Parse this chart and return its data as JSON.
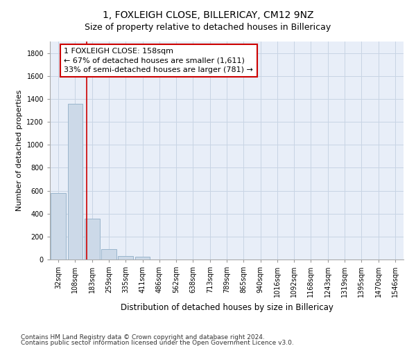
{
  "title": "1, FOXLEIGH CLOSE, BILLERICAY, CM12 9NZ",
  "subtitle": "Size of property relative to detached houses in Billericay",
  "xlabel": "Distribution of detached houses by size in Billericay",
  "ylabel": "Number of detached properties",
  "categories": [
    "32sqm",
    "108sqm",
    "183sqm",
    "259sqm",
    "335sqm",
    "411sqm",
    "486sqm",
    "562sqm",
    "638sqm",
    "713sqm",
    "789sqm",
    "865sqm",
    "940sqm",
    "1016sqm",
    "1092sqm",
    "1168sqm",
    "1243sqm",
    "1319sqm",
    "1395sqm",
    "1470sqm",
    "1546sqm"
  ],
  "values": [
    580,
    1355,
    355,
    90,
    28,
    22,
    0,
    0,
    0,
    0,
    0,
    0,
    0,
    0,
    0,
    0,
    0,
    0,
    0,
    0,
    0
  ],
  "bar_color": "#ccd9e8",
  "bar_edge_color": "#9ab5cc",
  "property_line_x": 1.67,
  "property_line_color": "#cc0000",
  "annotation_text": "1 FOXLEIGH CLOSE: 158sqm\n← 67% of detached houses are smaller (1,611)\n33% of semi-detached houses are larger (781) →",
  "annotation_box_color": "#ffffff",
  "annotation_box_edge_color": "#cc0000",
  "ylim": [
    0,
    1900
  ],
  "yticks": [
    0,
    200,
    400,
    600,
    800,
    1000,
    1200,
    1400,
    1600,
    1800
  ],
  "grid_color": "#c8d4e4",
  "background_color": "#e8eef8",
  "footnote_line1": "Contains HM Land Registry data © Crown copyright and database right 2024.",
  "footnote_line2": "Contains public sector information licensed under the Open Government Licence v3.0.",
  "title_fontsize": 10,
  "subtitle_fontsize": 9,
  "xlabel_fontsize": 8.5,
  "ylabel_fontsize": 8,
  "tick_fontsize": 7,
  "annotation_fontsize": 8,
  "footnote_fontsize": 6.5
}
